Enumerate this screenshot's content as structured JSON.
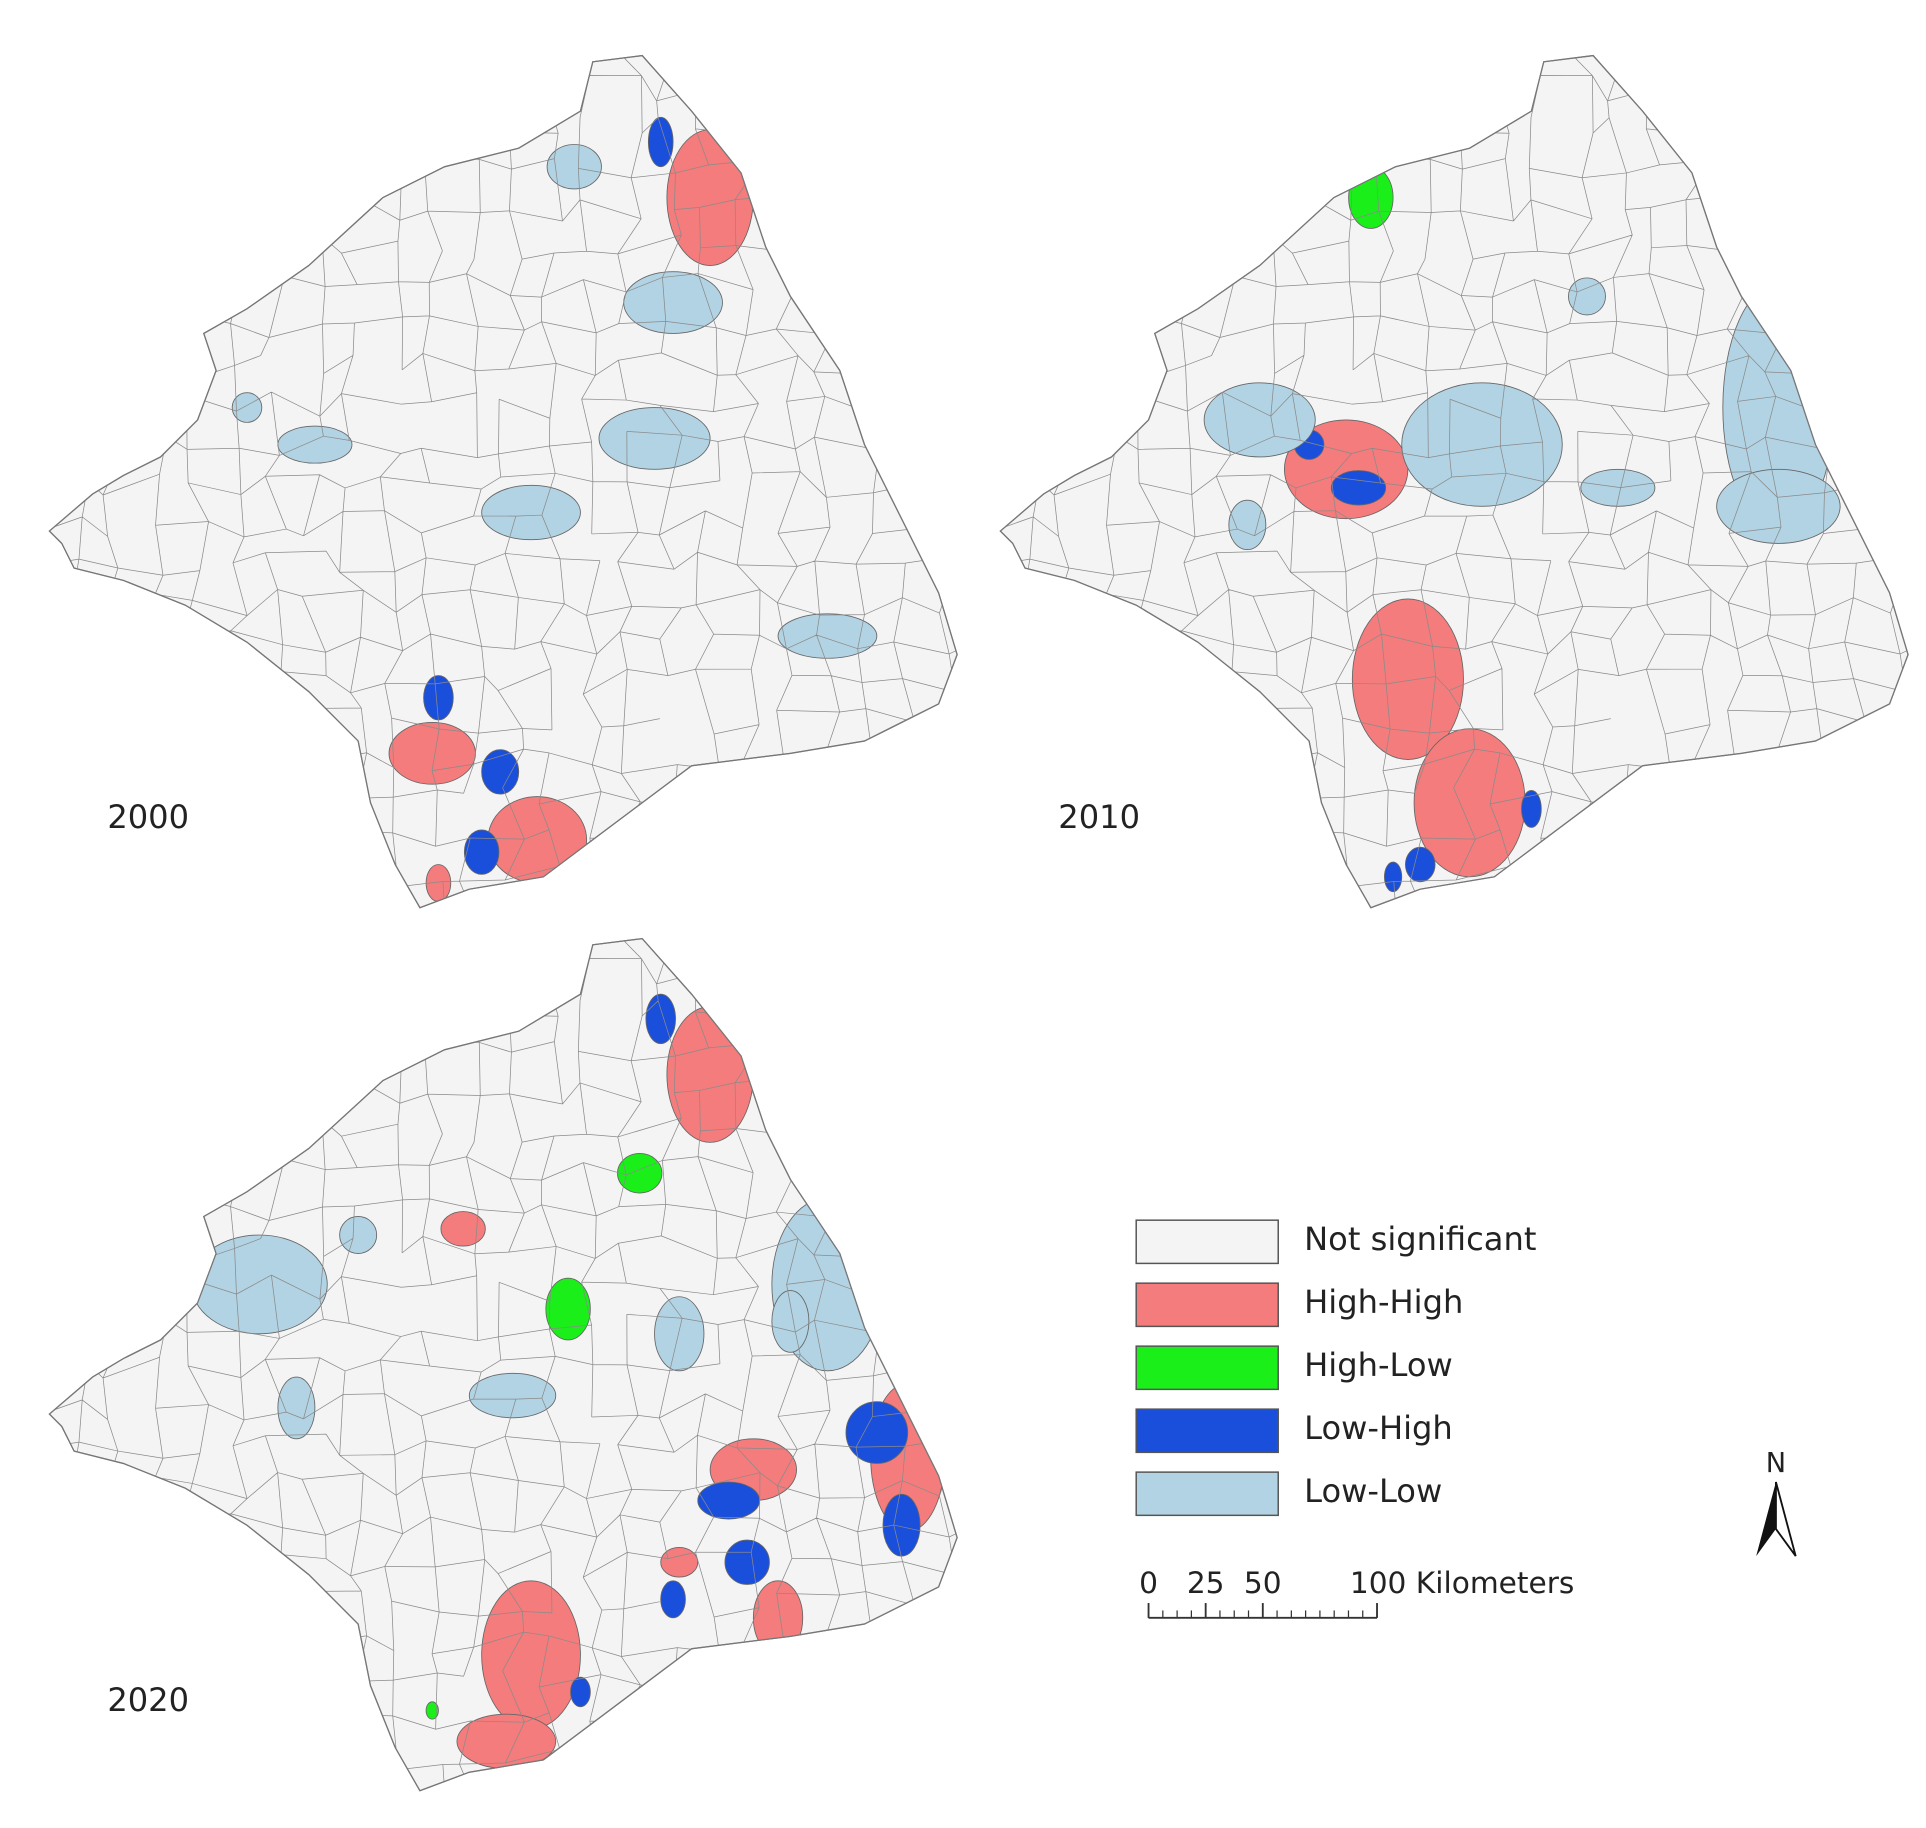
{
  "panels": [
    {
      "label": "2000"
    },
    {
      "label": "2010"
    },
    {
      "label": "2020"
    }
  ],
  "legend": {
    "items": [
      {
        "label": "Not significant",
        "color": "#f4f4f4"
      },
      {
        "label": "High-High",
        "color": "#f47c7c"
      },
      {
        "label": "High-Low",
        "color": "#1aef1a"
      },
      {
        "label": "Low-High",
        "color": "#1a4fdc"
      },
      {
        "label": "Low-Low",
        "color": "#b2d3e3"
      }
    ]
  },
  "scale_bar": {
    "ticks": [
      0,
      25,
      50,
      {
        "value": 100,
        "label": "100 Kilometers"
      }
    ]
  },
  "north_arrow": {
    "label": "N"
  }
}
